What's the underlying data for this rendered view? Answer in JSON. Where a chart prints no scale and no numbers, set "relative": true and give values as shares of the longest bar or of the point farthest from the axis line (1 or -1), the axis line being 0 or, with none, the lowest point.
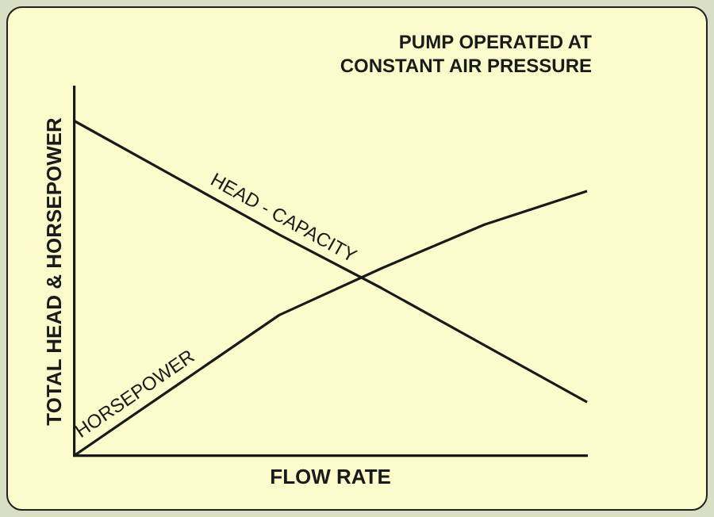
{
  "chart_data": {
    "type": "line",
    "title": "PUMP OPERATED AT\nCONSTANT AIR PRESSURE",
    "xlabel": "FLOW RATE",
    "ylabel": "TOTAL HEAD & HORSEPOWER",
    "relative": true,
    "categories": [
      null,
      null,
      null,
      null,
      null,
      null
    ],
    "series": [
      {
        "name": "HEAD - CAPACITY",
        "color": "#1a1a1a",
        "values": [
          1,
          0.83,
          0.66,
          0.5,
          0.33,
          0.16
        ]
      },
      {
        "name": "HORSEPOWER",
        "color": "#1a1a1a",
        "values": [
          0,
          0.21,
          0.42,
          0.56,
          0.69,
          0.79
        ]
      }
    ],
    "grid": false,
    "legend": false,
    "marker": "none",
    "line_style": "solid"
  }
}
